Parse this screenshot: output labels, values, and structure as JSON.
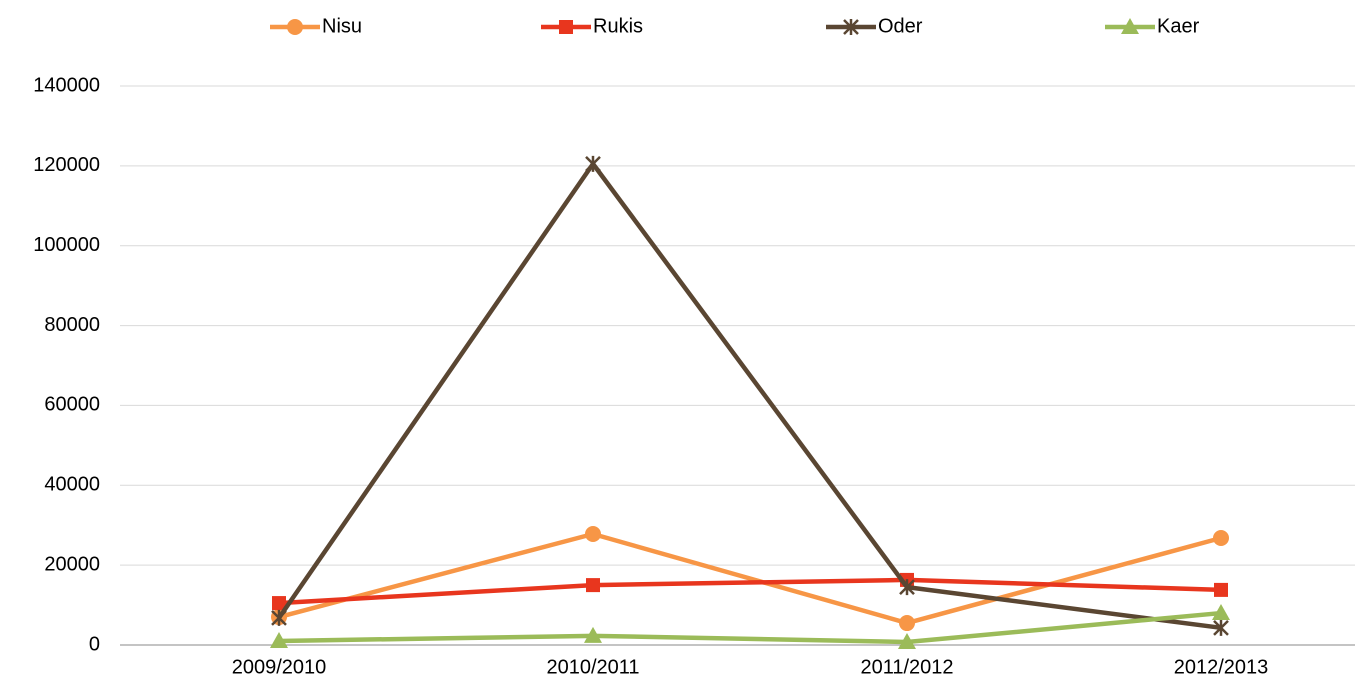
{
  "chart_data": {
    "type": "line",
    "categories": [
      "2009/2010",
      "2010/2011",
      "2011/2012",
      "2012/2013"
    ],
    "series": [
      {
        "name": "Nisu",
        "color": "#f79646",
        "marker": "circle",
        "values": [
          7000,
          27800,
          5500,
          26800
        ]
      },
      {
        "name": "Rukis",
        "color": "#e8361e",
        "marker": "square",
        "values": [
          10500,
          15000,
          16300,
          13800
        ]
      },
      {
        "name": "Oder",
        "color": "#5a4632",
        "marker": "star",
        "values": [
          6800,
          120500,
          14500,
          4300
        ]
      },
      {
        "name": "Kaer",
        "color": "#9bbb59",
        "marker": "triangle",
        "values": [
          1000,
          2300,
          750,
          8000
        ]
      }
    ],
    "ylim": [
      0,
      140000
    ],
    "yticks": [
      0,
      20000,
      40000,
      60000,
      80000,
      100000,
      120000,
      140000
    ],
    "grid": true,
    "legend": "top"
  }
}
